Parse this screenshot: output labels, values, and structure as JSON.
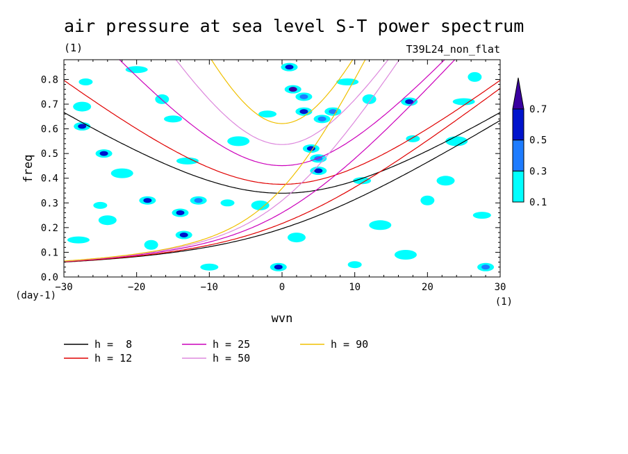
{
  "chart_data": {
    "type": "heatmap",
    "title": "air pressure at sea level S-T power spectrum",
    "subtitle_left": "(1)",
    "subtitle_right": "T39L24_non_flat",
    "xlabel": "wvn",
    "ylabel": "freq",
    "x_unit": "(1)",
    "y_unit": "(day-1)",
    "xlim": [
      -30,
      30
    ],
    "ylim": [
      0,
      0.88
    ],
    "xticks": [
      -30,
      -20,
      -10,
      0,
      10,
      20,
      30
    ],
    "yticks": [
      0.0,
      0.1,
      0.2,
      0.3,
      0.4,
      0.5,
      0.6,
      0.7,
      0.8
    ],
    "xtick_labels": [
      "−30",
      "−20",
      "−10",
      "0",
      "10",
      "20",
      "30"
    ],
    "ytick_labels": [
      "0.0",
      "0.1",
      "0.2",
      "0.3",
      "0.4",
      "0.5",
      "0.6",
      "0.7",
      "0.8"
    ],
    "colorbar": {
      "levels": [
        0.1,
        0.3,
        0.5,
        0.7
      ],
      "level_labels": [
        "0.1",
        "0.3",
        "0.5",
        "0.7"
      ],
      "colors": [
        "#00ffff",
        "#1e7cff",
        "#0014cc",
        "#3a00a0"
      ]
    },
    "contour_patches": [
      {
        "x": -27.5,
        "y": 0.61,
        "level": 0.5
      },
      {
        "x": -24.5,
        "y": 0.5,
        "level": 0.5
      },
      {
        "x": -18.5,
        "y": 0.31,
        "level": 0.5
      },
      {
        "x": -14.0,
        "y": 0.26,
        "level": 0.5
      },
      {
        "x": -13.5,
        "y": 0.17,
        "level": 0.5
      },
      {
        "x": -11.5,
        "y": 0.31,
        "level": 0.3
      },
      {
        "x": 1.0,
        "y": 0.85,
        "level": 0.5
      },
      {
        "x": 1.5,
        "y": 0.76,
        "level": 0.7
      },
      {
        "x": 3.0,
        "y": 0.73,
        "level": 0.3
      },
      {
        "x": 3.0,
        "y": 0.67,
        "level": 0.5
      },
      {
        "x": 5.5,
        "y": 0.64,
        "level": 0.3
      },
      {
        "x": 7.0,
        "y": 0.67,
        "level": 0.3
      },
      {
        "x": 4.0,
        "y": 0.52,
        "level": 0.5
      },
      {
        "x": 5.0,
        "y": 0.48,
        "level": 0.3
      },
      {
        "x": 5.0,
        "y": 0.43,
        "level": 0.5
      },
      {
        "x": -0.5,
        "y": 0.04,
        "level": 0.5
      },
      {
        "x": 17.5,
        "y": 0.71,
        "level": 0.5
      },
      {
        "x": 28.0,
        "y": 0.04,
        "level": 0.3
      },
      {
        "x": -27.0,
        "y": 0.79,
        "level": 0.1
      },
      {
        "x": -27.5,
        "y": 0.69,
        "level": 0.1
      },
      {
        "x": -20.0,
        "y": 0.84,
        "level": 0.1
      },
      {
        "x": -16.5,
        "y": 0.72,
        "level": 0.1
      },
      {
        "x": -15.0,
        "y": 0.64,
        "level": 0.1
      },
      {
        "x": -22.0,
        "y": 0.42,
        "level": 0.1
      },
      {
        "x": -25.0,
        "y": 0.29,
        "level": 0.1
      },
      {
        "x": -24.0,
        "y": 0.23,
        "level": 0.1
      },
      {
        "x": -28.0,
        "y": 0.15,
        "level": 0.1
      },
      {
        "x": -18.0,
        "y": 0.13,
        "level": 0.1
      },
      {
        "x": -10.0,
        "y": 0.04,
        "level": 0.1
      },
      {
        "x": -6.0,
        "y": 0.55,
        "level": 0.1
      },
      {
        "x": -7.5,
        "y": 0.3,
        "level": 0.1
      },
      {
        "x": -3.0,
        "y": 0.29,
        "level": 0.1
      },
      {
        "x": 9.0,
        "y": 0.79,
        "level": 0.1
      },
      {
        "x": 12.0,
        "y": 0.72,
        "level": 0.1
      },
      {
        "x": 11.0,
        "y": 0.39,
        "level": 0.1
      },
      {
        "x": 13.5,
        "y": 0.21,
        "level": 0.1
      },
      {
        "x": 18.0,
        "y": 0.56,
        "level": 0.1
      },
      {
        "x": 22.5,
        "y": 0.39,
        "level": 0.1
      },
      {
        "x": 25.0,
        "y": 0.71,
        "level": 0.1
      },
      {
        "x": 26.5,
        "y": 0.81,
        "level": 0.1
      },
      {
        "x": 27.5,
        "y": 0.25,
        "level": 0.1
      },
      {
        "x": 17.0,
        "y": 0.09,
        "level": 0.1
      },
      {
        "x": 10.0,
        "y": 0.05,
        "level": 0.1
      },
      {
        "x": 2.0,
        "y": 0.16,
        "level": 0.1
      },
      {
        "x": -13.0,
        "y": 0.47,
        "level": 0.1
      },
      {
        "x": 20.0,
        "y": 0.31,
        "level": 0.1
      },
      {
        "x": -2.0,
        "y": 0.66,
        "level": 0.1
      },
      {
        "x": 24.0,
        "y": 0.55,
        "level": 0.1
      }
    ],
    "series": [
      {
        "name": "h =  8",
        "h": 8,
        "color": "#000000"
      },
      {
        "name": "h = 12",
        "h": 12,
        "color": "#e00000"
      },
      {
        "name": "h = 25",
        "h": 25,
        "color": "#cc00bb"
      },
      {
        "name": "h = 50",
        "h": 50,
        "color": "#dd88dd"
      },
      {
        "name": "h = 90",
        "h": 90,
        "color": "#f0c000"
      }
    ]
  }
}
